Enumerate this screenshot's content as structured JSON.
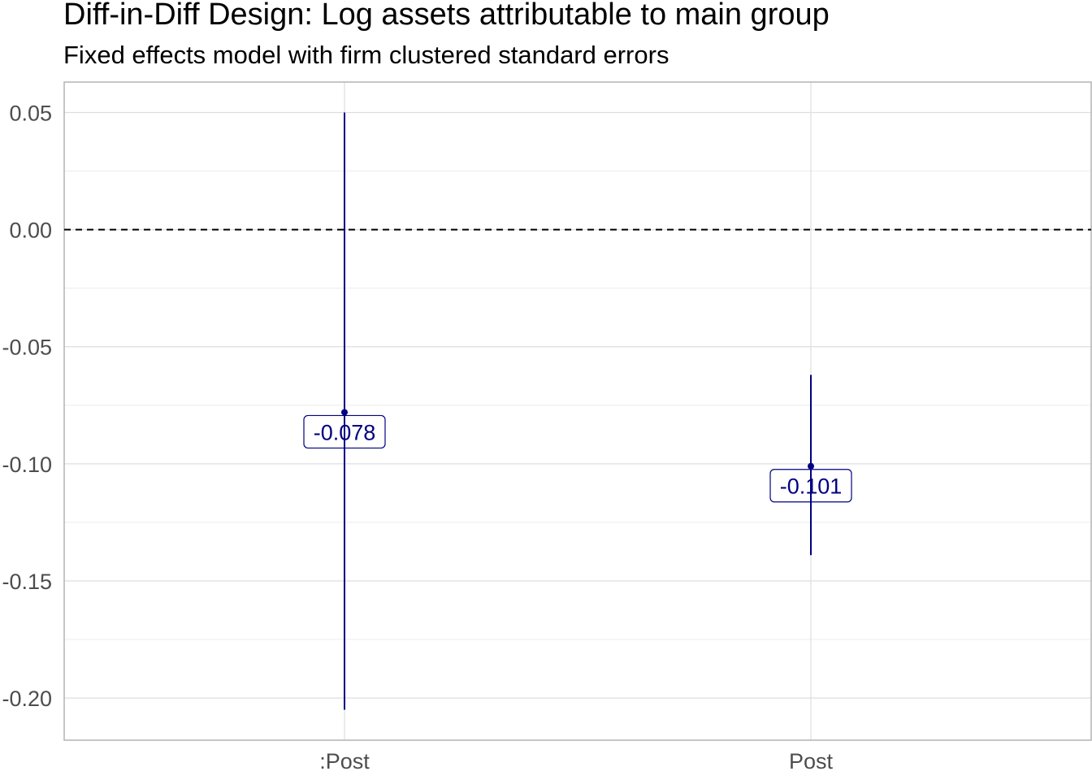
{
  "title": "Diff-in-Diff Design: Log assets attributable to main group",
  "subtitle": "Fixed effects model with firm clustered standard errors",
  "chart_data": {
    "type": "errorbar",
    "categories": [
      ":Post",
      "Post"
    ],
    "estimates": [
      -0.078,
      -0.101
    ],
    "lower": [
      -0.205,
      -0.139
    ],
    "upper": [
      0.05,
      -0.062
    ],
    "labels": [
      "-0.078",
      "-0.101"
    ],
    "ylim": [
      -0.218,
      0.063
    ],
    "yticks": [
      0.05,
      0.0,
      -0.05,
      -0.1,
      -0.15,
      -0.2
    ],
    "ytick_labels": [
      "0.05",
      "0.00",
      "-0.05",
      "-0.10",
      "-0.15",
      "-0.20"
    ],
    "reference_line": 0,
    "xlabel": "",
    "ylabel": "",
    "grid": true,
    "colors": {
      "series": "#000080",
      "grid": "#dedede",
      "axis": "#b3b3b3",
      "tick_text": "#4d4d4d"
    }
  }
}
